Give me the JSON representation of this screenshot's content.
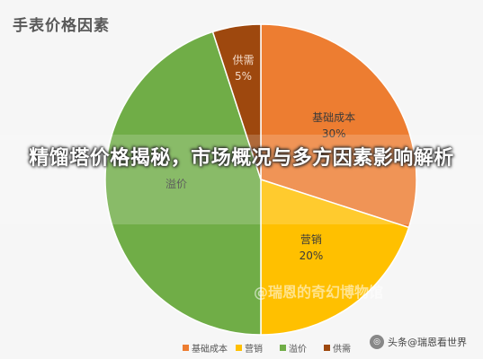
{
  "chart_data": {
    "type": "pie",
    "title": "手表价格因素",
    "categories": [
      "基础成本",
      "营销",
      "溢价",
      "供需"
    ],
    "values": [
      30,
      20,
      45,
      5
    ],
    "value_labels": [
      "30%",
      "20%",
      "",
      "5%"
    ],
    "colors": [
      "#ed7d31",
      "#ffc000",
      "#70ad47",
      "#9e480e"
    ],
    "legend_position": "bottom"
  },
  "overlay": {
    "headline": "精馏塔价格揭秘，市场概况与多方因素影响解析",
    "watermark_mid": "@瑞恩的奇幻博物馆",
    "watermark_corner": "头条@瑞恩看世界"
  }
}
